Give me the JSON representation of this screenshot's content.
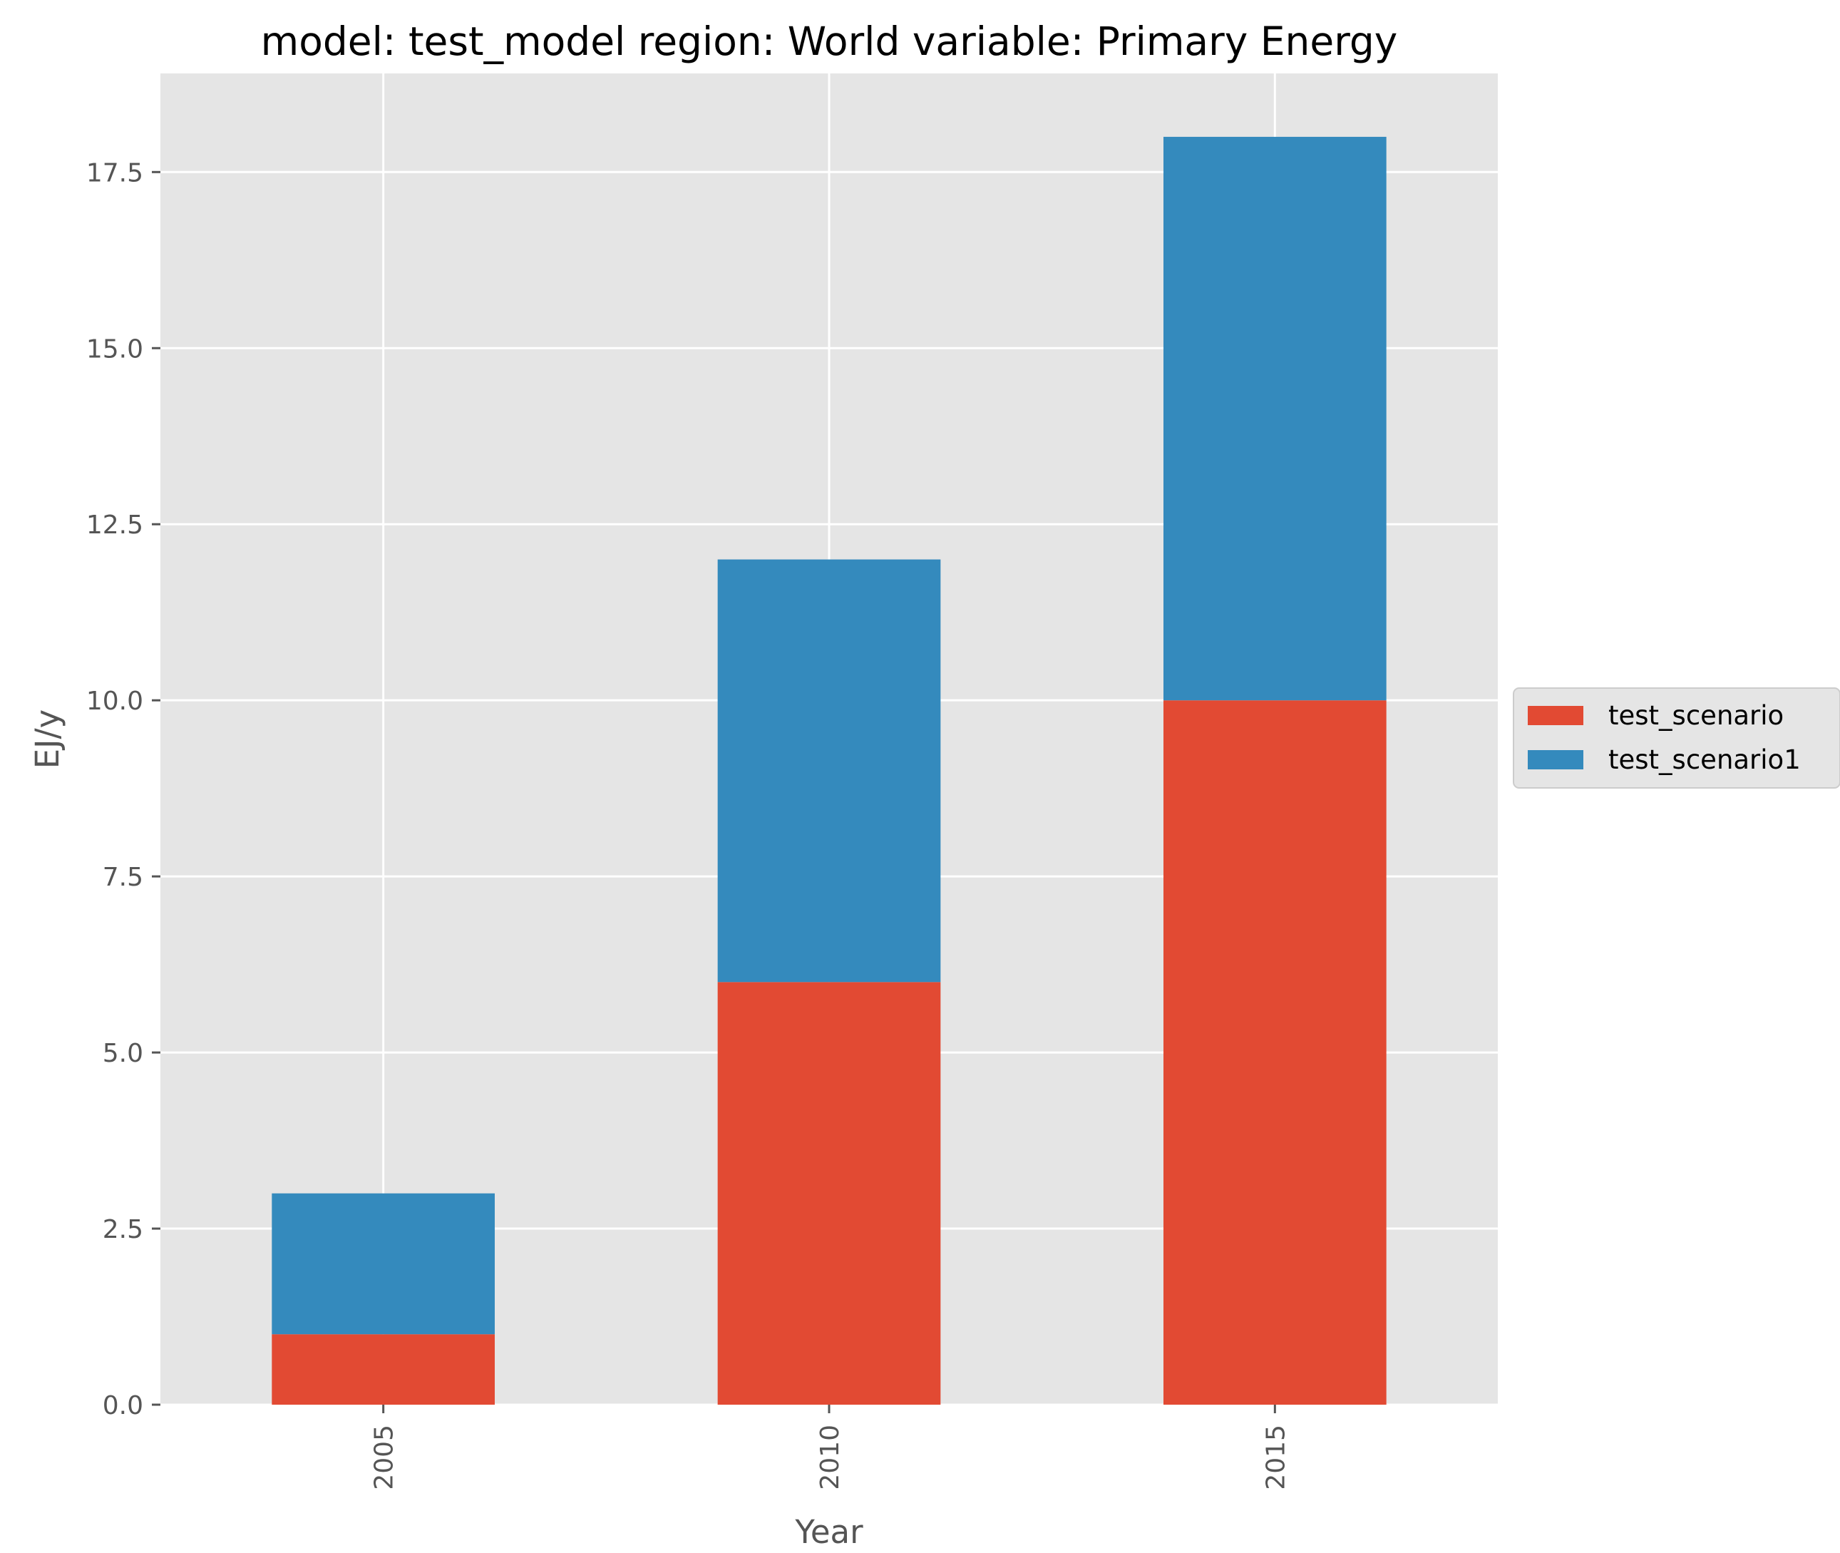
{
  "chart_data": {
    "type": "bar",
    "stacked": true,
    "title": "model: test_model region: World variable: Primary Energy",
    "xlabel": "Year",
    "ylabel": "EJ/y",
    "categories": [
      "2005",
      "2010",
      "2015"
    ],
    "series": [
      {
        "name": "test_scenario",
        "color": "#E24A33",
        "values": [
          1,
          6,
          10
        ]
      },
      {
        "name": "test_scenario1",
        "color": "#348ABD",
        "values": [
          2,
          6,
          8
        ]
      }
    ],
    "ylim": [
      0,
      18.9
    ],
    "yticks": [
      0,
      2.5,
      5,
      7.5,
      10,
      12.5,
      15,
      17.5
    ],
    "ytick_labels": [
      "0.0",
      "2.5",
      "5.0",
      "7.5",
      "10.0",
      "12.5",
      "15.0",
      "17.5"
    ],
    "grid": true,
    "legend_position": "center-right-outside",
    "background_color": "#E5E5E5"
  }
}
